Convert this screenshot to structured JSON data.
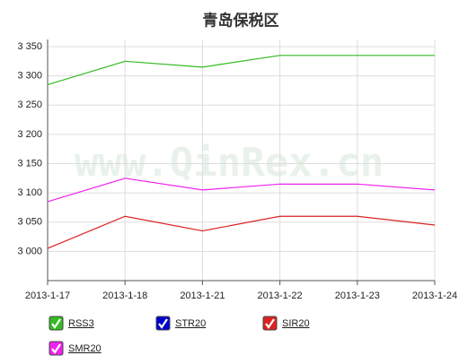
{
  "chart_data": {
    "type": "line",
    "title": "青岛保税区",
    "watermark": "www.QinRex.cn",
    "categories": [
      "2013-1-17",
      "2013-1-18",
      "2013-1-21",
      "2013-1-22",
      "2013-1-23",
      "2013-1-24"
    ],
    "series": [
      {
        "name": "RSS3",
        "color": "#33bb22",
        "values": [
          3285,
          3325,
          3315,
          3335,
          3335,
          3335
        ]
      },
      {
        "name": "STR20",
        "color": "#0000cc",
        "values": [
          null,
          null,
          null,
          null,
          null,
          null
        ]
      },
      {
        "name": "SIR20",
        "color": "#dd2222",
        "values": [
          3005,
          3060,
          3035,
          3060,
          3060,
          3045
        ]
      },
      {
        "name": "SMR20",
        "color": "#ee22ee",
        "values": [
          3085,
          3125,
          3105,
          3115,
          3115,
          3105
        ]
      }
    ],
    "ylim": [
      2950,
      3350
    ],
    "yticks": [
      {
        "value": 3000,
        "label": "3 000"
      },
      {
        "value": 3050,
        "label": "3 050"
      },
      {
        "value": 3100,
        "label": "3 100"
      },
      {
        "value": 3150,
        "label": "3 150"
      },
      {
        "value": 3200,
        "label": "3 200"
      },
      {
        "value": 3250,
        "label": "3 250"
      },
      {
        "value": 3300,
        "label": "3 300"
      },
      {
        "value": 3350,
        "label": "3 350"
      }
    ],
    "grid": true
  }
}
